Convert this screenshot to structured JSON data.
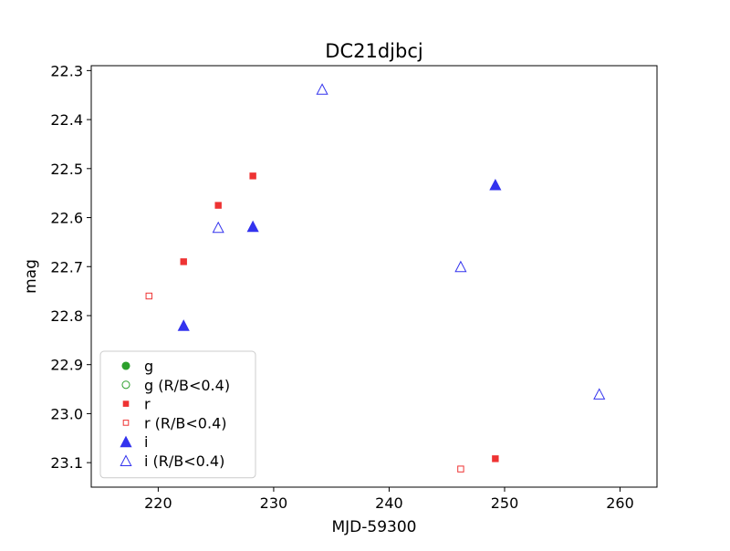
{
  "chart_data": {
    "type": "scatter",
    "title": "DC21djbcj",
    "xlabel": "MJD-59300",
    "ylabel": "mag",
    "xlim": [
      214.2,
      263.2
    ],
    "ylim": [
      23.15,
      22.29
    ],
    "y_inverted": true,
    "xticks": [
      220,
      230,
      240,
      250,
      260
    ],
    "yticks": [
      22.3,
      22.4,
      22.5,
      22.6,
      22.7,
      22.8,
      22.9,
      23.0,
      23.1
    ],
    "ytick_labels": [
      "22.3",
      "22.4",
      "22.5",
      "22.6",
      "22.7",
      "22.8",
      "22.9",
      "23.0",
      "23.1"
    ],
    "grid": false,
    "legend_position": "lower-left",
    "series": [
      {
        "name": "g",
        "color": "#2ca02c",
        "marker": "circle",
        "filled": true,
        "points": []
      },
      {
        "name": "g (R/B<0.4)",
        "color": "#2ca02c",
        "marker": "circle",
        "filled": false,
        "points": []
      },
      {
        "name": "r",
        "color": "#ee3333",
        "marker": "square",
        "filled": true,
        "points": [
          [
            222.2,
            22.69
          ],
          [
            225.2,
            22.575
          ],
          [
            228.2,
            22.515
          ],
          [
            249.2,
            23.092
          ]
        ]
      },
      {
        "name": "r (R/B<0.4)",
        "color": "#ee3333",
        "marker": "square",
        "filled": false,
        "points": [
          [
            219.2,
            22.76
          ],
          [
            246.2,
            23.113
          ]
        ]
      },
      {
        "name": "i",
        "color": "#3333ee",
        "marker": "triangle",
        "filled": true,
        "points": [
          [
            222.2,
            22.82
          ],
          [
            228.2,
            22.618
          ],
          [
            249.2,
            22.533
          ]
        ]
      },
      {
        "name": "i (R/B<0.4)",
        "color": "#3333ee",
        "marker": "triangle",
        "filled": false,
        "points": [
          [
            225.2,
            22.62
          ],
          [
            234.2,
            22.338
          ],
          [
            246.2,
            22.7
          ],
          [
            258.2,
            22.96
          ]
        ]
      }
    ]
  }
}
